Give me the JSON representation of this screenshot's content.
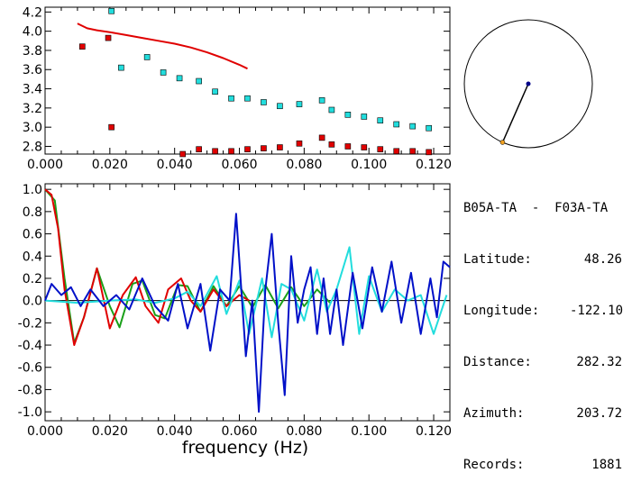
{
  "colors": {
    "red": "#e00000",
    "cyan": "#22dddd",
    "blue": "#0010c8",
    "green": "#1aa01a",
    "orange": "#f0a020",
    "navy": "#000088"
  },
  "info": {
    "station_pair": "B05A-TA  -  F03A-TA",
    "latitude_label": "Latitude:",
    "latitude_value": "48.26",
    "longitude_label": "Longitude:",
    "longitude_value": "-122.10",
    "distance_label": "Distance:",
    "distance_value": "282.32",
    "azimuth_label": "Azimuth:",
    "azimuth_value": "203.72",
    "records_label": "Records:",
    "records_value": "1881"
  },
  "azimuth_deg": 203.72,
  "chart_data": [
    {
      "type": "scatter",
      "xlim": [
        0.0,
        0.125
      ],
      "ylim": [
        2.72,
        4.25
      ],
      "x_ticks": [
        "0.000",
        "0.020",
        "0.040",
        "0.060",
        "0.080",
        "0.100",
        "0.120"
      ],
      "y_ticks": [
        "2.8",
        "3.0",
        "3.2",
        "3.4",
        "3.6",
        "3.8",
        "4.0",
        "4.2"
      ],
      "series": [
        {
          "color": "cyan",
          "marker": "square",
          "x": [
            0.0205,
            0.0235,
            0.0315,
            0.0365,
            0.0415,
            0.0475,
            0.0525,
            0.0575,
            0.0625,
            0.0675,
            0.0725,
            0.0785,
            0.0855,
            0.0885,
            0.0935,
            0.0985,
            0.1035,
            0.1085,
            0.1135,
            0.1185
          ],
          "y": [
            4.21,
            3.62,
            3.73,
            3.57,
            3.51,
            3.48,
            3.37,
            3.3,
            3.3,
            3.26,
            3.22,
            3.24,
            3.28,
            3.18,
            3.13,
            3.11,
            3.07,
            3.03,
            3.01,
            2.99
          ]
        },
        {
          "color": "red",
          "marker": "square",
          "x": [
            0.0115,
            0.0195,
            0.0205,
            0.0425,
            0.0475,
            0.0525,
            0.0575,
            0.0625,
            0.0675,
            0.0725,
            0.0785,
            0.0855,
            0.0885,
            0.0935,
            0.0985,
            0.1035,
            0.1085,
            0.1135,
            0.1185
          ],
          "y": [
            3.84,
            3.93,
            3.0,
            2.72,
            2.77,
            2.75,
            2.75,
            2.77,
            2.78,
            2.79,
            2.83,
            2.89,
            2.82,
            2.8,
            2.79,
            2.77,
            2.75,
            2.75,
            2.74
          ]
        },
        {
          "color": "red",
          "marker": "line",
          "x": [
            0.01,
            0.013,
            0.016,
            0.02,
            0.025,
            0.03,
            0.035,
            0.04,
            0.045,
            0.05,
            0.055,
            0.06,
            0.0625
          ],
          "y": [
            4.08,
            4.03,
            4.01,
            3.99,
            3.96,
            3.93,
            3.9,
            3.87,
            3.83,
            3.78,
            3.72,
            3.65,
            3.61
          ]
        }
      ]
    },
    {
      "type": "line",
      "xlabel": "frequency (Hz)",
      "xlim": [
        0.0,
        0.125
      ],
      "ylim": [
        -1.08,
        1.05
      ],
      "x_ticks": [
        "0.000",
        "0.020",
        "0.040",
        "0.060",
        "0.080",
        "0.100",
        "0.120"
      ],
      "y_ticks": [
        "1.0",
        "0.8",
        "0.6",
        "0.4",
        "0.2",
        "0.0",
        "-0.2",
        "-0.4",
        "-0.6",
        "-0.8",
        "-1.0"
      ],
      "series": [
        {
          "color": "green",
          "x": [
            0.0,
            0.003,
            0.006,
            0.009,
            0.012,
            0.016,
            0.02,
            0.023,
            0.027,
            0.03,
            0.034,
            0.037,
            0.041,
            0.044,
            0.048,
            0.052,
            0.056,
            0.06,
            0.064,
            0.068,
            0.072,
            0.076,
            0.08,
            0.084,
            0.088
          ],
          "y": [
            1.0,
            0.9,
            0.2,
            -0.38,
            -0.15,
            0.29,
            -0.05,
            -0.24,
            0.15,
            0.18,
            -0.13,
            -0.16,
            0.14,
            0.13,
            -0.1,
            0.13,
            -0.05,
            0.13,
            -0.06,
            0.14,
            -0.07,
            0.12,
            -0.05,
            0.1,
            -0.02
          ]
        },
        {
          "color": "red",
          "x": [
            0.0,
            0.002,
            0.004,
            0.006,
            0.009,
            0.012,
            0.016,
            0.02,
            0.024,
            0.028,
            0.031,
            0.035,
            0.038,
            0.042,
            0.045,
            0.048,
            0.052,
            0.056,
            0.06,
            0.063
          ],
          "y": [
            1.0,
            0.95,
            0.65,
            0.1,
            -0.4,
            -0.15,
            0.29,
            -0.25,
            0.05,
            0.21,
            -0.05,
            -0.2,
            0.1,
            0.2,
            0.0,
            -0.1,
            0.1,
            -0.05,
            0.05,
            0.0
          ]
        },
        {
          "color": "cyan",
          "x": [
            0.0,
            0.01,
            0.02,
            0.028,
            0.034,
            0.04,
            0.044,
            0.048,
            0.053,
            0.056,
            0.06,
            0.063,
            0.067,
            0.07,
            0.073,
            0.076,
            0.08,
            0.084,
            0.087,
            0.09,
            0.094,
            0.097,
            0.1,
            0.104,
            0.108,
            0.112,
            0.116,
            0.12,
            0.124
          ],
          "y": [
            0.0,
            -0.02,
            0.0,
            0.01,
            -0.02,
            0.02,
            0.08,
            -0.05,
            0.22,
            -0.12,
            0.18,
            -0.3,
            0.2,
            -0.33,
            0.15,
            0.1,
            -0.18,
            0.28,
            -0.1,
            0.1,
            0.48,
            -0.3,
            0.22,
            -0.1,
            0.1,
            0.0,
            0.05,
            -0.3,
            0.05
          ]
        },
        {
          "color": "blue",
          "x": [
            0.0,
            0.002,
            0.005,
            0.008,
            0.011,
            0.014,
            0.018,
            0.022,
            0.026,
            0.03,
            0.034,
            0.038,
            0.041,
            0.044,
            0.048,
            0.051,
            0.054,
            0.057,
            0.059,
            0.062,
            0.064,
            0.066,
            0.068,
            0.07,
            0.072,
            0.074,
            0.076,
            0.078,
            0.08,
            0.082,
            0.084,
            0.086,
            0.088,
            0.09,
            0.092,
            0.095,
            0.098,
            0.101,
            0.104,
            0.107,
            0.11,
            0.113,
            0.116,
            0.119,
            0.121,
            0.123,
            0.125
          ],
          "y": [
            0.0,
            0.15,
            0.05,
            0.12,
            -0.05,
            0.1,
            -0.05,
            0.05,
            -0.08,
            0.2,
            -0.05,
            -0.18,
            0.15,
            -0.25,
            0.15,
            -0.45,
            0.1,
            0.0,
            0.78,
            -0.5,
            0.0,
            -1.0,
            0.1,
            0.6,
            -0.2,
            -0.85,
            0.4,
            -0.2,
            0.1,
            0.3,
            -0.3,
            0.2,
            -0.3,
            0.1,
            -0.4,
            0.25,
            -0.25,
            0.3,
            -0.1,
            0.35,
            -0.2,
            0.25,
            -0.3,
            0.2,
            -0.15,
            0.35,
            0.3
          ]
        }
      ]
    }
  ]
}
